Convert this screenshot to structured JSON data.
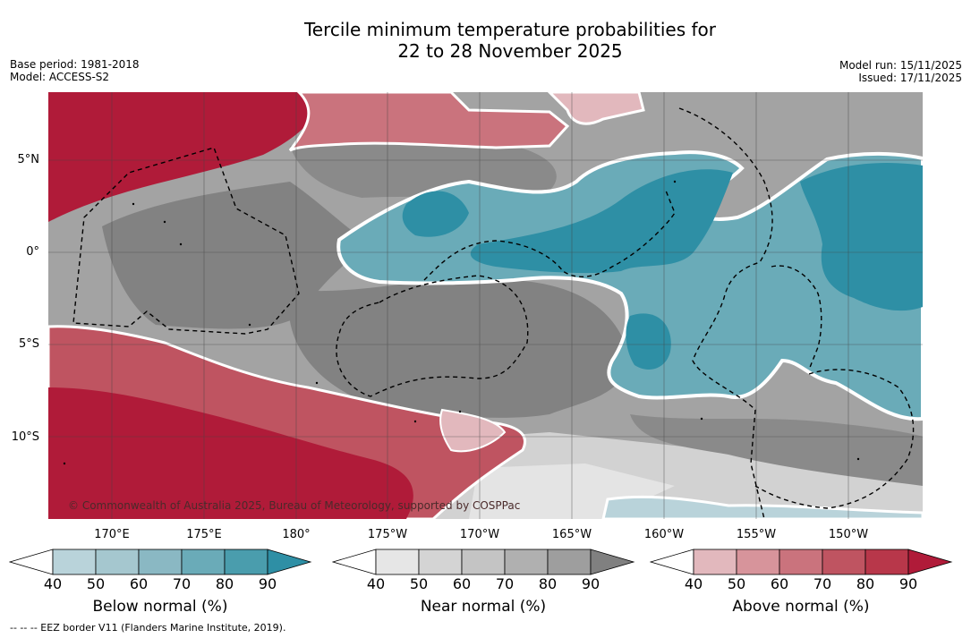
{
  "header": {
    "title_line1": "Tercile minimum temperature probabilities for",
    "title_line2": "22 to 28 November 2025",
    "base_period": "Base period: 1981-2018",
    "model": "Model: ACCESS-S2",
    "model_run": "Model run: 15/11/2025",
    "issued": "Issued: 17/11/2025"
  },
  "map": {
    "copyright": "© Commonwealth of Australia 2025, Bureau of Meteorology, supported by COSPPac",
    "lat_labels": [
      "5°N",
      "0°",
      "5°S",
      "10°S"
    ],
    "lon_labels": [
      "170°E",
      "175°E",
      "180°",
      "175°W",
      "170°W",
      "165°W",
      "160°W",
      "155°W",
      "150°W"
    ]
  },
  "legend": {
    "below": {
      "title": "Below normal (%)",
      "ticks": [
        "40",
        "50",
        "60",
        "70",
        "80",
        "90"
      ],
      "colors": [
        "#ffffff",
        "#b9d3da",
        "#a5c7cf",
        "#8ab8c3",
        "#6aabb8",
        "#4a9dad",
        "#2e8fa5"
      ]
    },
    "near": {
      "title": "Near normal (%)",
      "ticks": [
        "40",
        "50",
        "60",
        "70",
        "80",
        "90"
      ],
      "colors": [
        "#ffffff",
        "#e6e6e6",
        "#d4d4d4",
        "#c4c4c4",
        "#b0b0b0",
        "#9e9e9e",
        "#808080"
      ]
    },
    "above": {
      "title": "Above normal (%)",
      "ticks": [
        "40",
        "50",
        "60",
        "70",
        "80",
        "90"
      ],
      "colors": [
        "#ffffff",
        "#e2b8bd",
        "#d7949b",
        "#ca737d",
        "#bf5461",
        "#b8374a",
        "#b01b39"
      ]
    }
  },
  "footnote": "--  --  -- EEZ border V11 (Flanders Marine Institute, 2019)."
}
